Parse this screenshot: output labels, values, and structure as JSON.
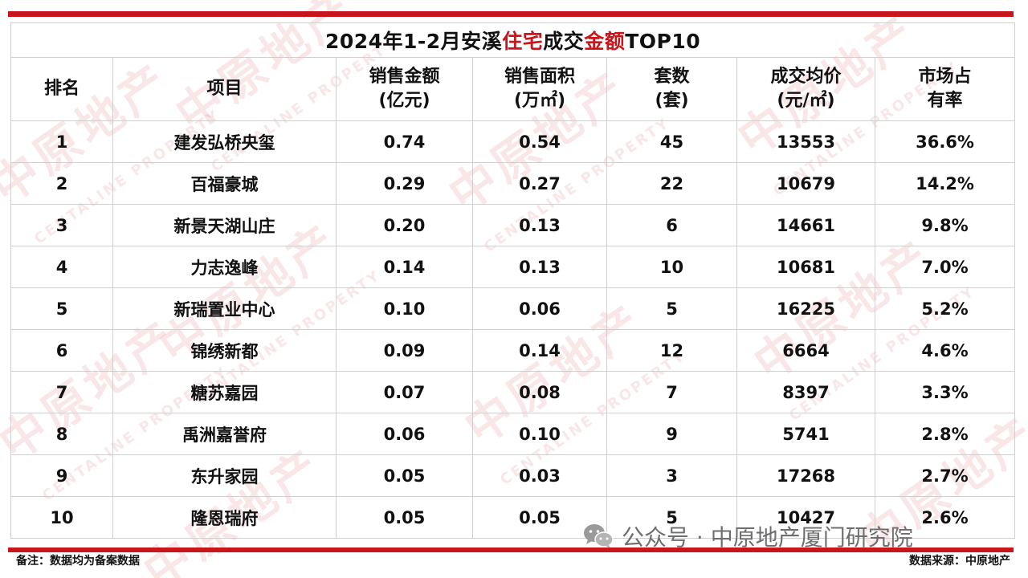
{
  "title": {
    "prefix": "2024年1-2月安溪",
    "red1": "住宅",
    "mid": "成交",
    "red2": "金额",
    "suffix": "TOP10"
  },
  "headers": {
    "rank": "排名",
    "project": "项目",
    "amount": [
      "销售金额",
      "(亿元)"
    ],
    "area": [
      "销售面积",
      "(万㎡)"
    ],
    "units": [
      "套数",
      "(套)"
    ],
    "price": [
      "成交均价",
      "(元/㎡)"
    ],
    "share": [
      "市场占",
      "有率"
    ]
  },
  "rows": [
    {
      "rank": "1",
      "project": "建发弘桥央玺",
      "amount": "0.74",
      "area": "0.54",
      "units": "45",
      "price": "13553",
      "share": "36.6%"
    },
    {
      "rank": "2",
      "project": "百福豪城",
      "amount": "0.29",
      "area": "0.27",
      "units": "22",
      "price": "10679",
      "share": "14.2%"
    },
    {
      "rank": "3",
      "project": "新景天湖山庄",
      "amount": "0.20",
      "area": "0.13",
      "units": "6",
      "price": "14661",
      "share": "9.8%"
    },
    {
      "rank": "4",
      "project": "力志逸峰",
      "amount": "0.14",
      "area": "0.13",
      "units": "10",
      "price": "10681",
      "share": "7.0%"
    },
    {
      "rank": "5",
      "project": "新瑞置业中心",
      "amount": "0.10",
      "area": "0.06",
      "units": "5",
      "price": "16225",
      "share": "5.2%"
    },
    {
      "rank": "6",
      "project": "锦绣新都",
      "amount": "0.09",
      "area": "0.14",
      "units": "12",
      "price": "6664",
      "share": "4.6%"
    },
    {
      "rank": "7",
      "project": "糖苏嘉园",
      "amount": "0.07",
      "area": "0.08",
      "units": "7",
      "price": "8397",
      "share": "3.3%"
    },
    {
      "rank": "8",
      "project": "禹洲嘉誉府",
      "amount": "0.06",
      "area": "0.10",
      "units": "9",
      "price": "5741",
      "share": "2.8%"
    },
    {
      "rank": "9",
      "project": "东升家园",
      "amount": "0.05",
      "area": "0.03",
      "units": "3",
      "price": "17268",
      "share": "2.7%"
    },
    {
      "rank": "10",
      "project": "隆恩瑞府",
      "amount": "0.05",
      "area": "0.05",
      "units": "5",
      "price": "10427",
      "share": "2.6%"
    }
  ],
  "footnote": "备注：数据均为备案数据",
  "source": "数据来源：中原地产",
  "wechat_label": "公众号 · 中原地产厦门研究院",
  "watermark": {
    "cn": "中原地产",
    "en": "CENTALINE PROPERTY"
  },
  "colors": {
    "accent_red": "#c8161d",
    "watermark": "rgba(200,22,29,0.10)",
    "wechat_gray": "#6e6e6e"
  }
}
